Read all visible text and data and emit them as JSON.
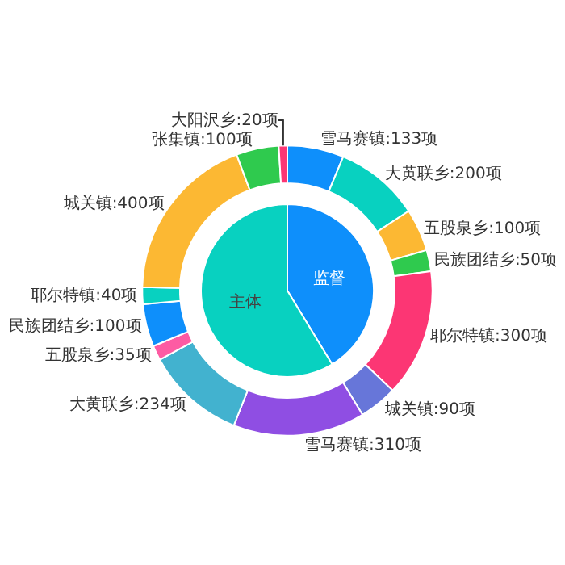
{
  "chart_data": [
    {
      "type": "pie",
      "categories": [
        "监督",
        "主体"
      ],
      "values": [
        41.3,
        58.7
      ],
      "colors": [
        "#0e8ffb",
        "#08d1c0"
      ]
    },
    {
      "type": "donut",
      "categories": [
        "雪马赛镇",
        "大黄联乡",
        "五股泉乡",
        "民族团结乡",
        "耶尔特镇",
        "城关镇",
        "雪马赛镇",
        "大黄联乡",
        "五股泉乡",
        "民族团结乡",
        "耶尔特镇",
        "城关镇",
        "张集镇",
        "大阳沢乡"
      ],
      "values": [
        133,
        200,
        100,
        50,
        300,
        90,
        310,
        234,
        35,
        100,
        40,
        400,
        100,
        20
      ],
      "value_labels": [
        "133项",
        "200项",
        "100项",
        "50项",
        "300项",
        "90项",
        "310项",
        "234项",
        "35项",
        "100项",
        "40项",
        "400项",
        "100项",
        "20项"
      ],
      "colors": [
        "#0e8ffb",
        "#08d1c0",
        "#fcb833",
        "#2fca4e",
        "#fc3674",
        "#6776d9",
        "#8f4ee3",
        "#42b2cf",
        "#fd5ba3",
        "#0e8ffb",
        "#08d1c0",
        "#fcb833",
        "#2fca4e",
        "#fc3674"
      ]
    }
  ]
}
